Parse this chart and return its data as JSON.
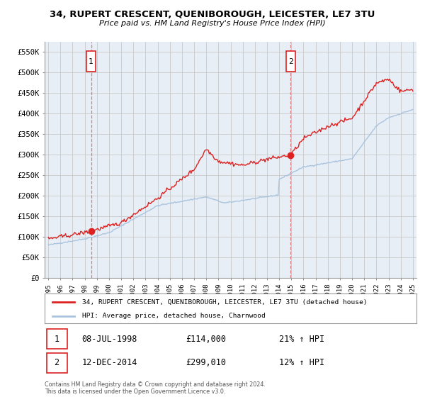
{
  "title": "34, RUPERT CRESCENT, QUENIBOROUGH, LEICESTER, LE7 3TU",
  "subtitle": "Price paid vs. HM Land Registry's House Price Index (HPI)",
  "ylabel_ticks": [
    "£0",
    "£50K",
    "£100K",
    "£150K",
    "£200K",
    "£250K",
    "£300K",
    "£350K",
    "£400K",
    "£450K",
    "£500K",
    "£550K"
  ],
  "ytick_values": [
    0,
    50000,
    100000,
    150000,
    200000,
    250000,
    300000,
    350000,
    400000,
    450000,
    500000,
    550000
  ],
  "ylim": [
    0,
    575000
  ],
  "xlim_start": 1994.7,
  "xlim_end": 2025.3,
  "sale1": {
    "date_num": 1998.52,
    "price": 114000,
    "label": "1"
  },
  "sale2": {
    "date_num": 2014.95,
    "price": 299010,
    "label": "2"
  },
  "hpi_color": "#aac4e0",
  "price_color": "#dd2020",
  "grid_color": "#c8c8c8",
  "background_color": "#e8eef5",
  "legend_label_red": "34, RUPERT CRESCENT, QUENIBOROUGH, LEICESTER, LE7 3TU (detached house)",
  "legend_label_blue": "HPI: Average price, detached house, Charnwood",
  "annotation1": [
    "1",
    "08-JUL-1998",
    "£114,000",
    "21% ↑ HPI"
  ],
  "annotation2": [
    "2",
    "12-DEC-2014",
    "£299,010",
    "12% ↑ HPI"
  ],
  "footer": "Contains HM Land Registry data © Crown copyright and database right 2024.\nThis data is licensed under the Open Government Licence v3.0."
}
